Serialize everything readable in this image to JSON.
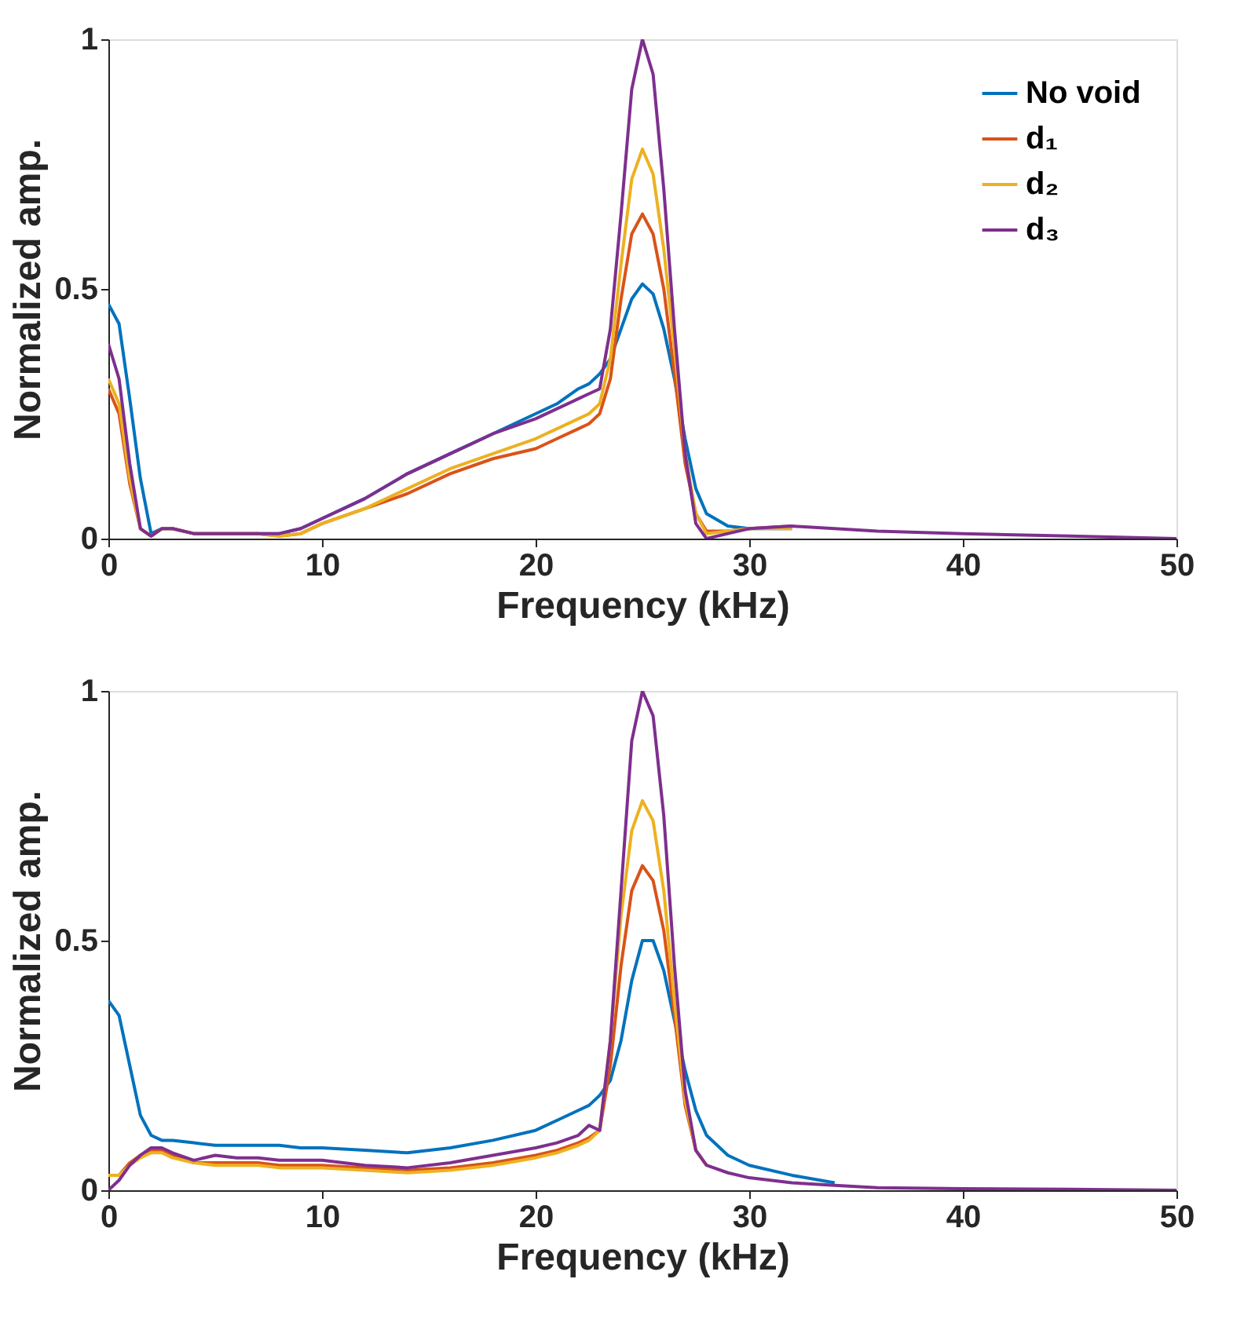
{
  "chart_data": [
    {
      "type": "line",
      "xlabel": "Frequency (kHz)",
      "ylabel": "Normalized amp.",
      "xlim": [
        0,
        50
      ],
      "ylim": [
        0,
        1
      ],
      "xticks": [
        0,
        10,
        20,
        30,
        40,
        50
      ],
      "yticks": [
        0,
        0.5,
        1
      ],
      "grid": false,
      "legend": "top right",
      "marker": "none",
      "line_style": "solid",
      "x": [
        0,
        0.5,
        1,
        1.5,
        2,
        2.5,
        3,
        4,
        5,
        6,
        7,
        8,
        9,
        10,
        12,
        14,
        16,
        18,
        20,
        21,
        22,
        22.5,
        23,
        23.5,
        24,
        24.5,
        25,
        25.5,
        26,
        26.5,
        27,
        27.5,
        28,
        29,
        30,
        32,
        34,
        36,
        40,
        45,
        50
      ],
      "series": [
        {
          "name": "No void",
          "color": "#0072bd",
          "x": [
            0,
            0.5,
            1,
            1.5,
            2,
            2.5,
            3,
            4,
            5,
            6,
            7,
            8,
            9,
            10,
            12,
            14,
            16,
            18,
            20,
            21,
            22,
            22.5,
            23,
            23.5,
            24,
            24.5,
            25,
            25.5,
            26,
            26.5,
            27,
            27.5,
            28,
            29,
            30,
            32
          ],
          "values": [
            0.47,
            0.43,
            0.28,
            0.12,
            0.01,
            0.02,
            0.02,
            0.01,
            0.01,
            0.01,
            0.01,
            0.01,
            0.02,
            0.04,
            0.08,
            0.13,
            0.17,
            0.21,
            0.25,
            0.27,
            0.3,
            0.31,
            0.33,
            0.36,
            0.42,
            0.48,
            0.51,
            0.49,
            0.42,
            0.32,
            0.2,
            0.1,
            0.05,
            0.025,
            0.02,
            0.02
          ]
        },
        {
          "name": "d₁",
          "color": "#d95319",
          "x": [
            0,
            0.5,
            1,
            1.5,
            2,
            2.5,
            3,
            4,
            5,
            6,
            7,
            8,
            9,
            10,
            12,
            14,
            16,
            18,
            20,
            21,
            22,
            22.5,
            23,
            23.5,
            24,
            24.5,
            25,
            25.5,
            26,
            26.5,
            27,
            27.5,
            28,
            29,
            30,
            32
          ],
          "values": [
            0.3,
            0.25,
            0.11,
            0.02,
            0.005,
            0.02,
            0.02,
            0.01,
            0.01,
            0.01,
            0.01,
            0.005,
            0.01,
            0.03,
            0.06,
            0.09,
            0.13,
            0.16,
            0.18,
            0.2,
            0.22,
            0.23,
            0.25,
            0.32,
            0.48,
            0.61,
            0.65,
            0.61,
            0.5,
            0.33,
            0.15,
            0.05,
            0.015,
            0.015,
            0.02,
            0.025
          ]
        },
        {
          "name": "d₂",
          "color": "#edb120",
          "x": [
            0,
            0.5,
            1,
            1.5,
            2,
            2.5,
            3,
            4,
            5,
            6,
            7,
            8,
            9,
            10,
            12,
            14,
            16,
            18,
            20,
            21,
            22,
            22.5,
            23,
            23.5,
            24,
            24.5,
            25,
            25.5,
            26,
            26.5,
            27,
            27.5,
            28,
            29,
            30,
            32
          ],
          "values": [
            0.32,
            0.27,
            0.12,
            0.02,
            0.005,
            0.02,
            0.02,
            0.01,
            0.01,
            0.01,
            0.01,
            0.005,
            0.01,
            0.03,
            0.06,
            0.1,
            0.14,
            0.17,
            0.2,
            0.22,
            0.24,
            0.25,
            0.27,
            0.36,
            0.55,
            0.72,
            0.78,
            0.73,
            0.58,
            0.38,
            0.17,
            0.05,
            0.01,
            0.015,
            0.02,
            0.02
          ]
        },
        {
          "name": "d₃",
          "color": "#7e2f8e",
          "values": [
            0.39,
            0.32,
            0.15,
            0.02,
            0.005,
            0.02,
            0.02,
            0.01,
            0.01,
            0.01,
            0.01,
            0.01,
            0.02,
            0.04,
            0.08,
            0.13,
            0.17,
            0.21,
            0.24,
            0.26,
            0.28,
            0.29,
            0.3,
            0.42,
            0.65,
            0.9,
            1.0,
            0.93,
            0.7,
            0.42,
            0.17,
            0.03,
            0.0,
            0.01,
            0.02,
            0.025,
            0.02,
            0.015,
            0.01,
            0.005,
            0
          ]
        }
      ]
    },
    {
      "type": "line",
      "xlabel": "Frequency (kHz)",
      "ylabel": "Normalized amp.",
      "xlim": [
        0,
        50
      ],
      "ylim": [
        0,
        1
      ],
      "xticks": [
        0,
        10,
        20,
        30,
        40,
        50
      ],
      "yticks": [
        0,
        0.5,
        1
      ],
      "grid": false,
      "legend": "top right",
      "marker": "none",
      "line_style": "solid",
      "x": [
        0,
        0.5,
        1,
        1.5,
        2,
        2.5,
        3,
        4,
        5,
        6,
        7,
        8,
        9,
        10,
        12,
        14,
        16,
        18,
        20,
        21,
        22,
        22.5,
        23,
        23.5,
        24,
        24.5,
        25,
        25.5,
        26,
        26.5,
        27,
        27.5,
        28,
        29,
        30,
        32,
        34,
        36,
        40,
        45,
        50
      ],
      "series": [
        {
          "name": "No void",
          "color": "#0072bd",
          "x": [
            0,
            0.5,
            1,
            1.5,
            2,
            2.5,
            3,
            4,
            5,
            6,
            7,
            8,
            9,
            10,
            12,
            14,
            16,
            18,
            20,
            21,
            22,
            22.5,
            23,
            23.5,
            24,
            24.5,
            25,
            25.5,
            26,
            26.5,
            27,
            27.5,
            28,
            29,
            30,
            32,
            34
          ],
          "values": [
            0.38,
            0.35,
            0.25,
            0.15,
            0.11,
            0.1,
            0.1,
            0.095,
            0.09,
            0.09,
            0.09,
            0.09,
            0.085,
            0.085,
            0.08,
            0.075,
            0.085,
            0.1,
            0.12,
            0.14,
            0.16,
            0.17,
            0.19,
            0.22,
            0.3,
            0.42,
            0.5,
            0.5,
            0.44,
            0.34,
            0.24,
            0.16,
            0.11,
            0.07,
            0.05,
            0.03,
            0.015
          ]
        },
        {
          "name": "d₁",
          "color": "#d95319",
          "x": [
            0,
            0.5,
            1,
            1.5,
            2,
            2.5,
            3,
            4,
            5,
            6,
            7,
            8,
            9,
            10,
            12,
            14,
            16,
            18,
            20,
            21,
            22,
            22.5,
            23,
            23.5,
            24,
            24.5,
            25,
            25.5,
            26,
            26.5,
            27,
            27.5,
            28
          ],
          "values": [
            0.03,
            0.03,
            0.055,
            0.07,
            0.08,
            0.08,
            0.07,
            0.055,
            0.055,
            0.055,
            0.055,
            0.05,
            0.05,
            0.05,
            0.045,
            0.04,
            0.045,
            0.055,
            0.07,
            0.08,
            0.095,
            0.105,
            0.12,
            0.25,
            0.45,
            0.6,
            0.65,
            0.62,
            0.52,
            0.35,
            0.17,
            0.08,
            0.05
          ]
        },
        {
          "name": "d₂",
          "color": "#edb120",
          "x": [
            0,
            0.5,
            1,
            1.5,
            2,
            2.5,
            3,
            4,
            5,
            6,
            7,
            8,
            9,
            10,
            12,
            14,
            16,
            18,
            20,
            21,
            22,
            22.5,
            23,
            23.5,
            24,
            24.5,
            25,
            25.5,
            26,
            26.5,
            27,
            27.5,
            28
          ],
          "values": [
            0.03,
            0.03,
            0.05,
            0.065,
            0.075,
            0.075,
            0.065,
            0.055,
            0.05,
            0.05,
            0.05,
            0.045,
            0.045,
            0.045,
            0.04,
            0.035,
            0.04,
            0.05,
            0.065,
            0.075,
            0.09,
            0.1,
            0.12,
            0.3,
            0.55,
            0.72,
            0.78,
            0.74,
            0.6,
            0.38,
            0.18,
            0.08,
            0.05
          ]
        },
        {
          "name": "d₃",
          "color": "#7e2f8e",
          "values": [
            0.0,
            0.02,
            0.05,
            0.07,
            0.085,
            0.085,
            0.075,
            0.06,
            0.07,
            0.065,
            0.065,
            0.06,
            0.06,
            0.06,
            0.05,
            0.045,
            0.055,
            0.07,
            0.085,
            0.095,
            0.11,
            0.13,
            0.12,
            0.3,
            0.6,
            0.9,
            1.0,
            0.95,
            0.75,
            0.45,
            0.2,
            0.08,
            0.05,
            0.035,
            0.025,
            0.015,
            0.01,
            0.005,
            0.003,
            0.002,
            0
          ]
        }
      ]
    }
  ]
}
